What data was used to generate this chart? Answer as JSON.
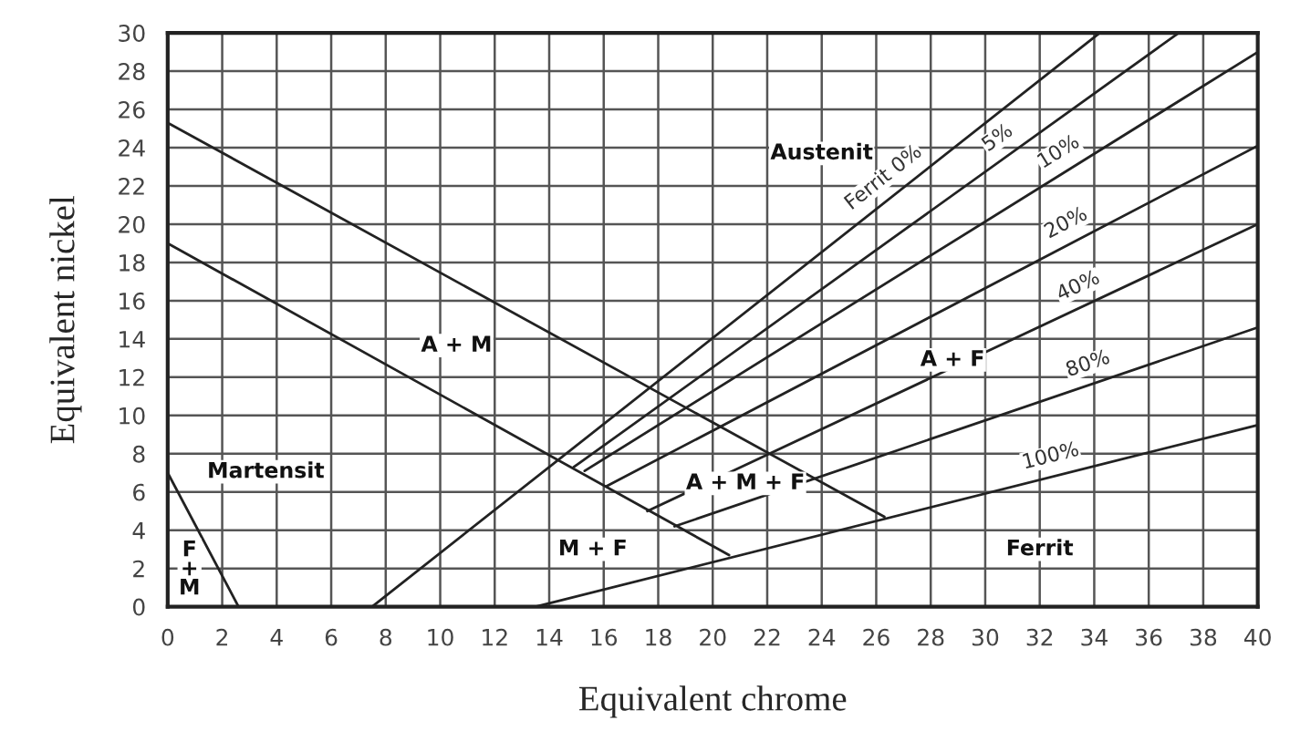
{
  "chart_data": {
    "type": "line",
    "xlabel": "Equivalent chrome",
    "ylabel": "Equivalent nickel",
    "xlim": [
      0,
      40
    ],
    "ylim": [
      0,
      30
    ],
    "xticks": [
      0,
      2,
      4,
      6,
      8,
      10,
      12,
      14,
      16,
      18,
      20,
      22,
      24,
      26,
      28,
      30,
      32,
      34,
      36,
      38,
      40
    ],
    "yticks": [
      0,
      2,
      4,
      6,
      8,
      10,
      12,
      14,
      16,
      18,
      20,
      22,
      24,
      26,
      28,
      30
    ],
    "grid": true,
    "legend": false,
    "marker": "none",
    "line_style": "solid",
    "series": [
      {
        "color": "#222222",
        "x": [
          0,
          26.3
        ],
        "values": [
          25.3,
          4.7
        ]
      },
      {
        "color": "#222222",
        "x": [
          0,
          20.6
        ],
        "values": [
          19,
          2.7
        ]
      },
      {
        "color": "#222222",
        "x": [
          0,
          2.6
        ],
        "values": [
          7,
          0
        ]
      },
      {
        "name": "Ferrit 0%",
        "color": "#222222",
        "x": [
          7.5,
          34.2
        ],
        "values": [
          0,
          30
        ]
      },
      {
        "name": "5%",
        "color": "#222222",
        "x": [
          14.9,
          37.1
        ],
        "values": [
          7.3,
          30
        ]
      },
      {
        "name": "10%",
        "color": "#222222",
        "x": [
          15.3,
          40
        ],
        "values": [
          7.1,
          29
        ]
      },
      {
        "name": "20%",
        "color": "#222222",
        "x": [
          16.1,
          40
        ],
        "values": [
          6.3,
          24.1
        ]
      },
      {
        "name": "40%",
        "color": "#222222",
        "x": [
          17.6,
          40
        ],
        "values": [
          5,
          20
        ]
      },
      {
        "name": "80%",
        "color": "#222222",
        "x": [
          18.6,
          40
        ],
        "values": [
          4.2,
          14.6
        ]
      },
      {
        "name": "100%",
        "color": "#222222",
        "x": [
          13.5,
          40
        ],
        "values": [
          0,
          9.5
        ]
      }
    ],
    "annotations": [
      "Austenit",
      "A + M",
      "Martensit",
      "F\n+\nM",
      "M + F",
      "A + M + F",
      "A + F",
      "Ferrit"
    ]
  }
}
